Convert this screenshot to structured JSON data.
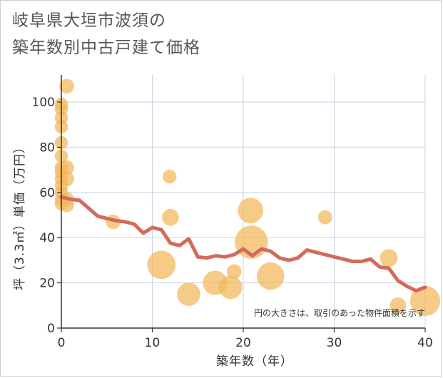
{
  "title_line1": "岐阜県大垣市波須の",
  "title_line2": "築年数別中古戸建て価格",
  "chart_data": {
    "type": "scatter",
    "title": "岐阜県大垣市波須の築年数別中古戸建て価格",
    "xlabel": "築年数（年）",
    "ylabel": "坪（3.3㎡）単価（万円）",
    "xlim": [
      0,
      40
    ],
    "ylim": [
      0,
      112
    ],
    "x_ticks": [
      0,
      10,
      20,
      30,
      40
    ],
    "y_ticks": [
      0,
      20,
      40,
      60,
      80,
      100
    ],
    "grid": true,
    "note": "円の大きさは、取引のあった物件面積を示す",
    "colors": {
      "bubble": "#f2b75a",
      "line": "#d46a5a",
      "grid": "#c8d3e0"
    },
    "bubbles": [
      {
        "x": 0,
        "y": 99,
        "size": 1
      },
      {
        "x": 0,
        "y": 97,
        "size": 1
      },
      {
        "x": 0,
        "y": 93,
        "size": 1
      },
      {
        "x": 0,
        "y": 89,
        "size": 1
      },
      {
        "x": 0,
        "y": 82,
        "size": 1
      },
      {
        "x": 0,
        "y": 76,
        "size": 1
      },
      {
        "x": 0,
        "y": 71,
        "size": 1
      },
      {
        "x": 0,
        "y": 69,
        "size": 1
      },
      {
        "x": 0,
        "y": 66,
        "size": 1
      },
      {
        "x": 0,
        "y": 63,
        "size": 1
      },
      {
        "x": 0,
        "y": 60,
        "size": 1
      },
      {
        "x": 0,
        "y": 57,
        "size": 1
      },
      {
        "x": 0,
        "y": 55,
        "size": 1
      },
      {
        "x": 0.6,
        "y": 107,
        "size": 1.5
      },
      {
        "x": 0.6,
        "y": 71,
        "size": 1.5
      },
      {
        "x": 0.6,
        "y": 66,
        "size": 1.5
      },
      {
        "x": 0.6,
        "y": 57,
        "size": 1.5
      },
      {
        "x": 0.6,
        "y": 54.5,
        "size": 1.5
      },
      {
        "x": 5.7,
        "y": 47,
        "size": 1.5
      },
      {
        "x": 11,
        "y": 28,
        "size": 12
      },
      {
        "x": 11.9,
        "y": 67,
        "size": 1.2
      },
      {
        "x": 12,
        "y": 49,
        "size": 2.5
      },
      {
        "x": 14,
        "y": 15,
        "size": 7
      },
      {
        "x": 16.9,
        "y": 20,
        "size": 8
      },
      {
        "x": 18.6,
        "y": 18,
        "size": 7
      },
      {
        "x": 19,
        "y": 25,
        "size": 1.5
      },
      {
        "x": 20.9,
        "y": 38,
        "size": 18
      },
      {
        "x": 20.8,
        "y": 52,
        "size": 9
      },
      {
        "x": 23,
        "y": 23,
        "size": 11
      },
      {
        "x": 29,
        "y": 49,
        "size": 1.3
      },
      {
        "x": 36,
        "y": 31,
        "size": 3
      },
      {
        "x": 37,
        "y": 10,
        "size": 2.2
      },
      {
        "x": 40,
        "y": 12,
        "size": 14
      }
    ],
    "series": [
      {
        "type": "line",
        "x": [
          0,
          1,
          2,
          3,
          4,
          5,
          6,
          7,
          8,
          9,
          10,
          11,
          12,
          13,
          14,
          15,
          16,
          17,
          18,
          19,
          20,
          21,
          22,
          23,
          24,
          25,
          26,
          27,
          28,
          29,
          30,
          31,
          32,
          33,
          34,
          35,
          36,
          37,
          38,
          39,
          40
        ],
        "y": [
          58,
          57,
          56.5,
          53,
          49.5,
          48.5,
          47.5,
          47,
          46,
          42,
          44.5,
          43.5,
          37.5,
          36.5,
          39.5,
          31.5,
          31,
          32,
          31.5,
          32.5,
          35,
          32,
          35,
          34,
          31,
          30,
          31,
          34.5,
          33.5,
          32.5,
          31.5,
          30.5,
          29.5,
          29.5,
          30.5,
          27,
          26.5,
          21,
          18.5,
          16.5,
          18
        ]
      }
    ]
  }
}
